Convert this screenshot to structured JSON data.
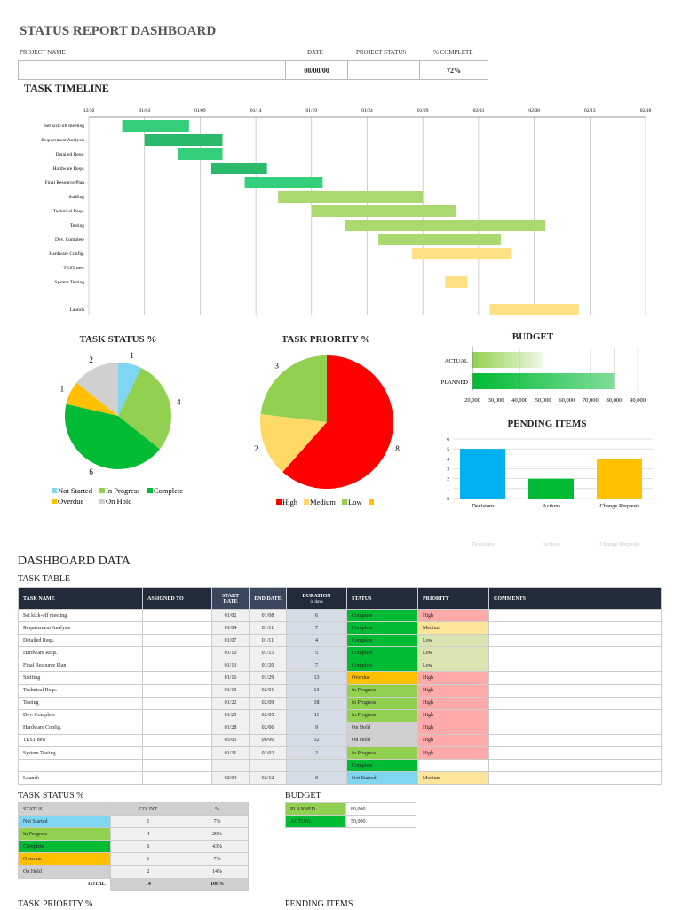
{
  "title": "STATUS REPORT DASHBOARD",
  "info": {
    "project_name_label": "PROJECT NAME",
    "date_label": "DATE",
    "status_label": "PROJECT  STATUS",
    "complete_label": "% COMPLETE",
    "project_name": "",
    "date": "00/00/00",
    "project_status": "",
    "complete": "72%"
  },
  "timeline": {
    "title": "TASK TIMELINE",
    "ticks": [
      "12/30",
      "01/04",
      "01/09",
      "01/14",
      "01/19",
      "01/24",
      "01/29",
      "02/03",
      "02/08",
      "02/13",
      "02/18"
    ],
    "tasks": [
      {
        "name": "Set kick-off meeting",
        "start": "01/02",
        "days": 6,
        "color": "#34cf7a"
      },
      {
        "name": "Requirement Analysis",
        "start": "01/04",
        "days": 7,
        "color": "#2bb96b"
      },
      {
        "name": "Detailed Reqs.",
        "start": "01/07",
        "days": 4,
        "color": "#34cf7a"
      },
      {
        "name": "Hardware Reqs.",
        "start": "01/10",
        "days": 5,
        "color": "#2bb96b"
      },
      {
        "name": "Final Resource Plan",
        "start": "01/13",
        "days": 7,
        "color": "#34cf7a"
      },
      {
        "name": "Staffing",
        "start": "01/16",
        "days": 13,
        "color": "#a9d96f"
      },
      {
        "name": "Technical Reqs.",
        "start": "01/19",
        "days": 13,
        "color": "#a9d96f"
      },
      {
        "name": "Testing",
        "start": "01/22",
        "days": 18,
        "color": "#a9d96f"
      },
      {
        "name": "Dev. Complete",
        "start": "01/25",
        "days": 11,
        "color": "#a9d96f"
      },
      {
        "name": "Hardware Config.",
        "start": "01/28",
        "days": 9,
        "color": "#ffe083"
      },
      {
        "name": "TEST new",
        "start": "05/05",
        "days": 32,
        "color": "#ffe083"
      },
      {
        "name": "System Testing",
        "start": "01/31",
        "days": 2,
        "color": "#ffe083"
      },
      {
        "name": "Launch",
        "start": "02/04",
        "days": 8,
        "color": "#ffe083"
      }
    ]
  },
  "chart_data": [
    {
      "type": "pie",
      "title": "TASK STATUS %",
      "categories": [
        "Not Started",
        "In Progress",
        "Complete",
        "Overdue",
        "On Hold"
      ],
      "values": [
        1,
        4,
        6,
        1,
        2
      ],
      "colors": [
        "#7fd6f0",
        "#92d050",
        "#00bb33",
        "#ffc000",
        "#d0d0d0"
      ],
      "legend": "bottom"
    },
    {
      "type": "pie",
      "title": "TASK PRIORITY %",
      "categories": [
        "High",
        "Medium",
        "Low",
        ""
      ],
      "values": [
        8,
        2,
        3,
        0
      ],
      "colors": [
        "#ff0000",
        "#ffd966",
        "#92d050",
        "#ffc000"
      ],
      "legend": "bottom"
    },
    {
      "type": "bar",
      "orientation": "horizontal",
      "title": "BUDGET",
      "categories": [
        "ACTUAL",
        "PLANNED"
      ],
      "values": [
        50000,
        80000
      ],
      "xlim": [
        20000,
        90000
      ],
      "ticks": [
        "20,000",
        "30,000",
        "40,000",
        "50,000",
        "60,000",
        "70,000",
        "80,000",
        "90,000"
      ],
      "colors": [
        "#92d050",
        "#00bb33"
      ]
    },
    {
      "type": "bar",
      "title": "PENDING ITEMS",
      "categories": [
        "Decisions",
        "Actions",
        "Change Requests"
      ],
      "values": [
        5,
        2,
        4
      ],
      "ylim": [
        0,
        6
      ],
      "ticks": [
        "0",
        "1",
        "2",
        "3",
        "4",
        "5",
        "6"
      ],
      "colors": [
        "#00b0f0",
        "#00bb33",
        "#ffc000"
      ]
    }
  ],
  "data": {
    "title": "DASHBOARD DATA",
    "task_table_title": "TASK TABLE",
    "headers": {
      "name": "TASK NAME",
      "assigned": "ASSIGNED TO",
      "start": "START DATE",
      "end": "END DATE",
      "duration": "DURATION",
      "duration_sub": "in days",
      "status": "STATUS",
      "priority": "PRIORITY",
      "comments": "COMMENTS"
    },
    "rows": [
      [
        "Set kick-off meeting",
        "",
        "01/02",
        "01/08",
        "6",
        "Complete",
        "High"
      ],
      [
        "Requirement Analysis",
        "",
        "01/04",
        "01/11",
        "7",
        "Complete",
        "Medium"
      ],
      [
        "Detailed Reqs.",
        "",
        "01/07",
        "01/11",
        "4",
        "Complete",
        "Low"
      ],
      [
        "Hardware Reqs.",
        "",
        "01/10",
        "01/15",
        "5",
        "Complete",
        "Low"
      ],
      [
        "Final Resource Plan",
        "",
        "01/13",
        "01/20",
        "7",
        "Complete",
        "Low"
      ],
      [
        "Staffing",
        "",
        "01/16",
        "01/29",
        "13",
        "Overdue",
        "High"
      ],
      [
        "Technical Reqs.",
        "",
        "01/19",
        "02/01",
        "13",
        "In Progress",
        "High"
      ],
      [
        "Testing",
        "",
        "01/22",
        "02/09",
        "18",
        "In Progress",
        "High"
      ],
      [
        "Dev. Complete",
        "",
        "01/25",
        "02/05",
        "11",
        "In Progress",
        "High"
      ],
      [
        "Hardware Config.",
        "",
        "01/28",
        "02/06",
        "9",
        "On Hold",
        "High"
      ],
      [
        "TEST new",
        "",
        "05/05",
        "06/06",
        "32",
        "On Hold",
        "High"
      ],
      [
        "System Testing",
        "",
        "01/31",
        "02/02",
        "2",
        "In Progress",
        "High"
      ],
      [
        "",
        "",
        "",
        "",
        "",
        "Complete",
        ""
      ],
      [
        "Launch",
        "",
        "02/04",
        "02/12",
        "8",
        "Not Started",
        "Medium"
      ]
    ],
    "status_colors": {
      "Complete": "#00bb33",
      "Overdue": "#ffc000",
      "In Progress": "#92d050",
      "On Hold": "#d0d0d0",
      "Not Started": "#7fd6f0"
    },
    "priority_colors": {
      "High": "#ffaaaa",
      "Medium": "#ffe599",
      "Low": "#d9e4b0"
    },
    "status_table": {
      "title": "TASK STATUS %",
      "headers": [
        "STATUS",
        "COUNT",
        "%"
      ],
      "rows": [
        [
          "Not Started",
          "1",
          "7%"
        ],
        [
          "In Progress",
          "4",
          "29%"
        ],
        [
          "Complete",
          "6",
          "43%"
        ],
        [
          "Overdue",
          "1",
          "7%"
        ],
        [
          "On Hold",
          "2",
          "14%"
        ]
      ],
      "total_label": "TOTAL",
      "total_count": "14",
      "total_pct": "100%"
    },
    "budget_table": {
      "title": "BUDGET",
      "rows": [
        [
          "PLANNED",
          "80,000",
          "#92d050"
        ],
        [
          "ACTUAL",
          "50,000",
          "#00bb33"
        ]
      ]
    },
    "priority_title": "TASK PRIORITY %",
    "pending_title": "PENDING ITEMS"
  }
}
